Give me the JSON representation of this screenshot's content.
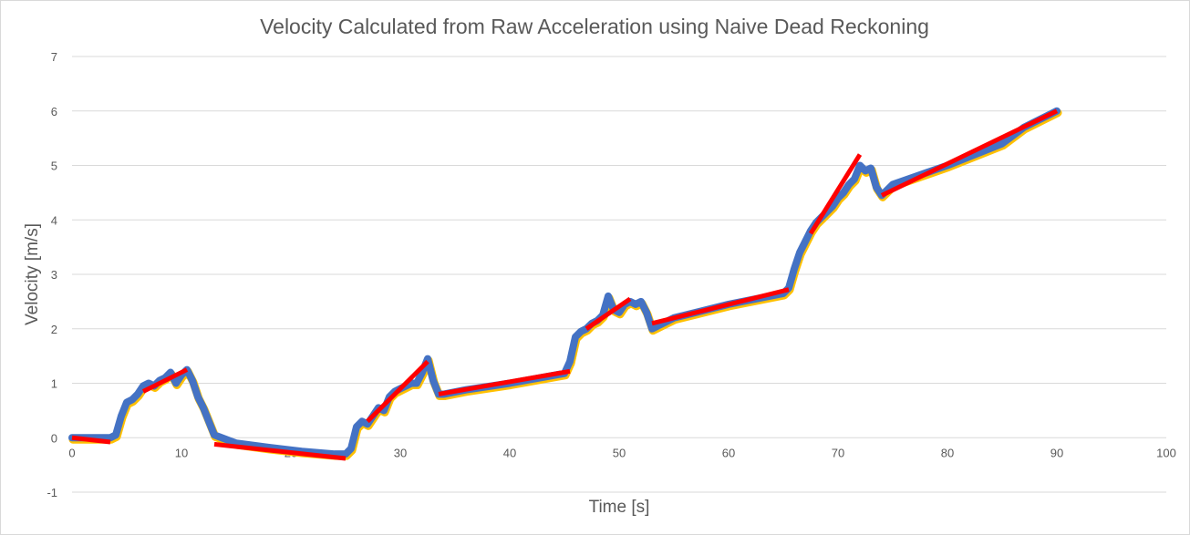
{
  "chart_data": {
    "type": "line",
    "title": "Velocity Calculated from Raw Acceleration using Naive Dead Reckoning",
    "xlabel": "Time [s]",
    "ylabel": "Velocity [m/s]",
    "xlim": [
      0,
      100
    ],
    "ylim": [
      -1,
      7
    ],
    "xticks": [
      0,
      10,
      20,
      30,
      40,
      50,
      60,
      70,
      80,
      90,
      100
    ],
    "yticks": [
      -1,
      0,
      1,
      2,
      3,
      4,
      5,
      6,
      7
    ],
    "grid": true,
    "legend": "none",
    "colors": {
      "measured": "#4472c4",
      "measured_edge": "#ffc000",
      "fit": "#ff0000",
      "gridline": "#d9d9d9",
      "text": "#595959"
    },
    "series": [
      {
        "x": [
          0,
          3.5,
          4,
          4.5,
          5,
          5.5,
          6,
          6.5,
          7,
          7.5,
          8,
          8.5,
          9,
          9.5,
          10,
          10.5,
          11,
          11.5,
          12,
          12.5,
          13,
          15,
          18,
          21,
          24,
          25,
          25.5,
          26,
          26.5,
          27,
          27.5,
          28,
          28.5,
          29,
          29.5,
          30,
          30.5,
          31,
          31.5,
          32,
          32.5,
          33,
          33.5,
          34,
          36,
          40,
          45,
          45.5,
          46,
          46.5,
          47,
          47.5,
          48,
          48.5,
          49,
          49.5,
          50,
          50.5,
          51,
          51.5,
          52,
          52.5,
          53,
          53.5,
          55,
          60,
          65,
          65.5,
          66,
          66.5,
          67,
          67.5,
          68,
          68.5,
          69,
          69.5,
          70,
          70.5,
          71,
          71.5,
          72,
          72.5,
          73,
          73.5,
          74,
          75,
          80,
          85,
          87,
          90
        ],
        "y": [
          0,
          0,
          0.05,
          0.4,
          0.65,
          0.7,
          0.8,
          0.95,
          1.0,
          0.95,
          1.05,
          1.1,
          1.2,
          1.0,
          1.15,
          1.25,
          1.05,
          0.75,
          0.55,
          0.3,
          0.05,
          -0.1,
          -0.18,
          -0.25,
          -0.3,
          -0.3,
          -0.2,
          0.2,
          0.3,
          0.25,
          0.4,
          0.55,
          0.5,
          0.75,
          0.85,
          0.9,
          0.95,
          1.0,
          1.0,
          1.2,
          1.45,
          1.05,
          0.8,
          0.8,
          0.88,
          1.0,
          1.18,
          1.4,
          1.85,
          1.95,
          2.0,
          2.1,
          2.15,
          2.25,
          2.6,
          2.35,
          2.3,
          2.45,
          2.5,
          2.45,
          2.5,
          2.3,
          2.0,
          2.05,
          2.2,
          2.45,
          2.65,
          2.75,
          3.1,
          3.4,
          3.6,
          3.8,
          3.95,
          4.05,
          4.15,
          4.25,
          4.4,
          4.5,
          4.65,
          4.75,
          5.0,
          4.9,
          4.95,
          4.6,
          4.45,
          4.65,
          5.0,
          5.4,
          5.7,
          6.0
        ]
      },
      {
        "segments": [
          {
            "x": [
              0,
              3.5
            ],
            "y": [
              0,
              -0.08
            ]
          },
          {
            "x": [
              6.5,
              10.5
            ],
            "y": [
              0.85,
              1.25
            ]
          },
          {
            "x": [
              13,
              25
            ],
            "y": [
              -0.12,
              -0.38
            ]
          },
          {
            "x": [
              27,
              32.5
            ],
            "y": [
              0.3,
              1.4
            ]
          },
          {
            "x": [
              33.5,
              45.5
            ],
            "y": [
              0.8,
              1.22
            ]
          },
          {
            "x": [
              47,
              51
            ],
            "y": [
              2.0,
              2.55
            ]
          },
          {
            "x": [
              53,
              65.5
            ],
            "y": [
              2.1,
              2.72
            ]
          },
          {
            "x": [
              67.5,
              72
            ],
            "y": [
              3.75,
              5.2
            ]
          },
          {
            "x": [
              74,
              90
            ],
            "y": [
              4.45,
              6.0
            ]
          }
        ]
      }
    ]
  }
}
